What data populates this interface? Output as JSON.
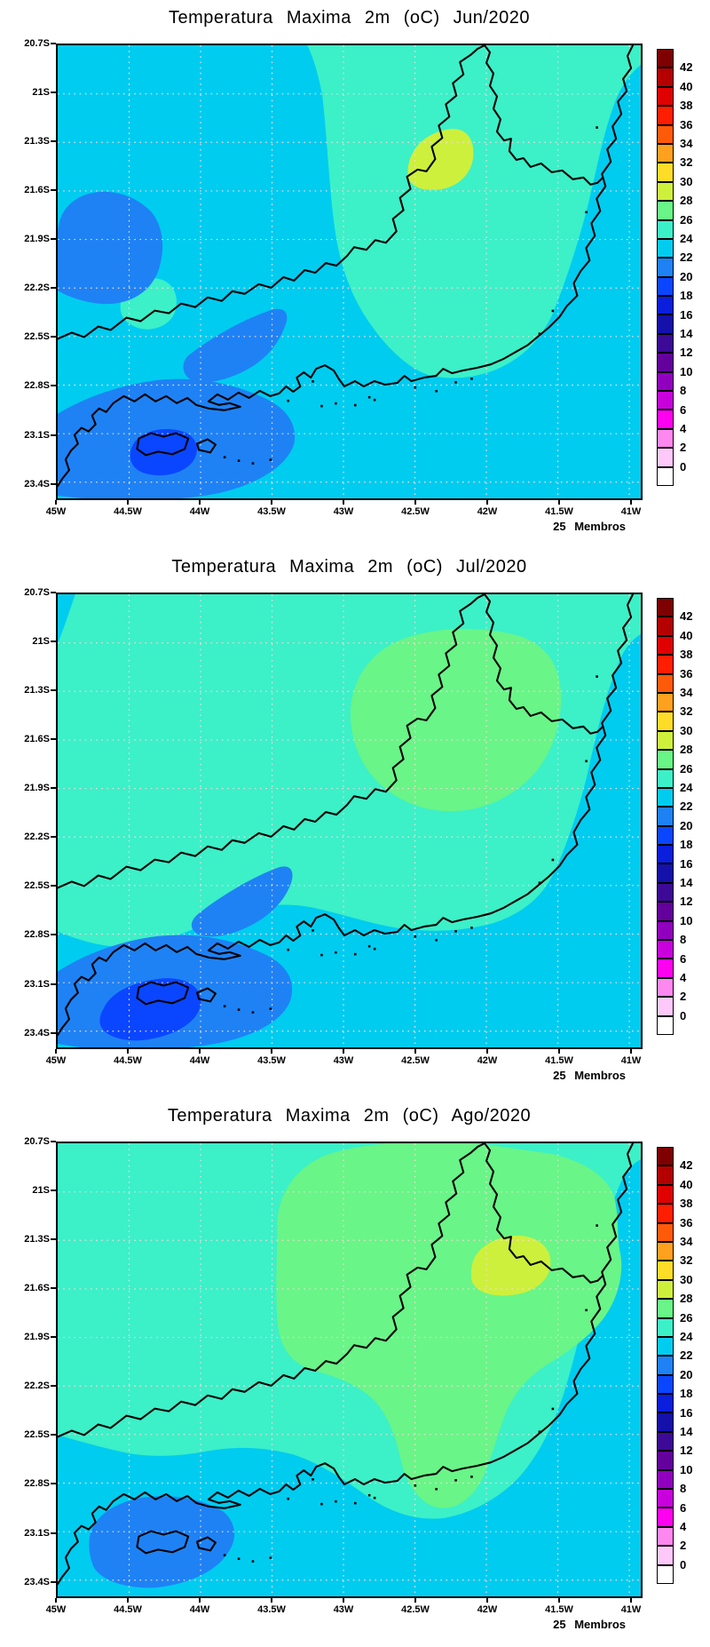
{
  "axes": {
    "lat_labels": [
      "20.7S",
      "21S",
      "21.3S",
      "21.6S",
      "21.9S",
      "22.2S",
      "22.5S",
      "22.8S",
      "23.1S",
      "23.4S"
    ],
    "lon_labels": [
      "45W",
      "44.5W",
      "44W",
      "43.5W",
      "43W",
      "42.5W",
      "42W",
      "41.5W",
      "41W"
    ]
  },
  "colorbar": {
    "tick_labels": [
      "42",
      "40",
      "38",
      "36",
      "34",
      "32",
      "30",
      "28",
      "26",
      "24",
      "22",
      "20",
      "18",
      "16",
      "14",
      "12",
      "10",
      "8",
      "6",
      "4",
      "2",
      "0"
    ],
    "bands": [
      {
        "range": "<0",
        "color": "#FFFFFF"
      },
      {
        "range": "0-2",
        "color": "#FFC8FA"
      },
      {
        "range": "2-4",
        "color": "#FF87F0"
      },
      {
        "range": "4-6",
        "color": "#FF00F0"
      },
      {
        "range": "6-8",
        "color": "#C800DC"
      },
      {
        "range": "8-10",
        "color": "#9100BE"
      },
      {
        "range": "10-12",
        "color": "#64009B"
      },
      {
        "range": "12-14",
        "color": "#3C0A96"
      },
      {
        "range": "14-16",
        "color": "#1410AA"
      },
      {
        "range": "16-18",
        "color": "#0A1EDC"
      },
      {
        "range": "18-20",
        "color": "#0A46FF"
      },
      {
        "range": "20-22",
        "color": "#1E82F5"
      },
      {
        "range": "22-24",
        "color": "#00CCF0"
      },
      {
        "range": "24-26",
        "color": "#3CF0C8"
      },
      {
        "range": "26-28",
        "color": "#69F587"
      },
      {
        "range": "28-30",
        "color": "#CDF03C"
      },
      {
        "range": "30-32",
        "color": "#FFDC28"
      },
      {
        "range": "32-34",
        "color": "#FFA01E"
      },
      {
        "range": "34-36",
        "color": "#FF5A0A"
      },
      {
        "range": "36-38",
        "color": "#FF1E00"
      },
      {
        "range": "38-40",
        "color": "#E00000"
      },
      {
        "range": "40-42",
        "color": "#B40000"
      },
      {
        "range": ">42",
        "color": "#7E0000"
      }
    ]
  },
  "panels": [
    {
      "title": "Temperatura Maxima 2m (oC) Jun/2020",
      "month": "Jun/2020",
      "members_label": "25 Membros"
    },
    {
      "title": "Temperatura Maxima 2m (oC) Jul/2020",
      "month": "Jul/2020",
      "members_label": "25 Membros"
    },
    {
      "title": "Temperatura Maxima 2m (oC) Ago/2020",
      "month": "Ago/2020",
      "members_label": "25 Membros"
    }
  ],
  "chart_data": [
    {
      "type": "contour_map",
      "title": "Temperatura Maxima 2m (oC) Jun/2020",
      "variable": "2m maximum temperature",
      "units": "oC",
      "month": "Jun/2020",
      "ensemble_note": "25 Membros",
      "lon_range_deg_west": [
        45.0,
        40.9
      ],
      "lat_range_deg_south": [
        20.7,
        23.5
      ],
      "contour_interval": 2,
      "colorbar_range": [
        0,
        42
      ],
      "regions": [
        {
          "temp_band_c": "22-24",
          "area": "dominant background: ocean, south coast and western interior"
        },
        {
          "temp_band_c": "24-26",
          "area": "large region over the north-central and northeastern interior, reaching the coast near 42W"
        },
        {
          "temp_band_c": "24-26",
          "area": "small isolated patch near 44.4W 22.3S"
        },
        {
          "temp_band_c": "28-30",
          "area": "small warm patch in the northeast near 41.6W 21.4S"
        },
        {
          "temp_band_c": "20-22",
          "area": "patch along the western border 21.6S-22.3S and southwest coastal mountain blob with band toward 43.4W 22.5S"
        },
        {
          "temp_band_c": "18-20",
          "area": "small cold core over the Ilha Grande bay area near 44.4W 23.1S"
        }
      ]
    },
    {
      "type": "contour_map",
      "title": "Temperatura Maxima 2m (oC) Jul/2020",
      "variable": "2m maximum temperature",
      "units": "oC",
      "month": "Jul/2020",
      "ensemble_note": "25 Membros",
      "lon_range_deg_west": [
        45.0,
        40.9
      ],
      "lat_range_deg_south": [
        20.7,
        23.5
      ],
      "contour_interval": 2,
      "colorbar_range": [
        0,
        42
      ],
      "regions": [
        {
          "temp_band_c": "22-24",
          "area": "southern half background, ocean strip along east coast and small wedge at far west top"
        },
        {
          "temp_band_c": "24-26",
          "area": "most of the northern half of the domain"
        },
        {
          "temp_band_c": "26-28",
          "area": "large warm region center-east, about 43.4W-41.6W and 21.0S-22.0S"
        },
        {
          "temp_band_c": "20-22",
          "area": "southwest coastal blob with band extending northeast toward 43.4W 22.6S"
        },
        {
          "temp_band_c": "18-20",
          "area": "cold core over Ilha Grande bay area near 44.3W 23.1S"
        }
      ]
    },
    {
      "type": "contour_map",
      "title": "Temperatura Maxima 2m (oC) Ago/2020",
      "variable": "2m maximum temperature",
      "units": "oC",
      "month": "Ago/2020",
      "ensemble_note": "25 Membros",
      "lon_range_deg_west": [
        45.0,
        40.9
      ],
      "lat_range_deg_south": [
        20.7,
        23.5
      ],
      "contour_interval": 2,
      "colorbar_range": [
        0,
        42
      ],
      "regions": [
        {
          "temp_band_c": "22-24",
          "area": "ocean and southern coastal background"
        },
        {
          "temp_band_c": "24-26",
          "area": "widespread over west and surrounding the warm region"
        },
        {
          "temp_band_c": "26-28",
          "area": "large warm region over north-central and eastern interior with tongue down to 22.9S near 42.3W"
        },
        {
          "temp_band_c": "28-30",
          "area": "warm patch near 41.8W 21.45S"
        },
        {
          "temp_band_c": "20-22",
          "area": "cool blob over southwest coastal mountains near 44.4W 23.1S"
        }
      ]
    }
  ]
}
